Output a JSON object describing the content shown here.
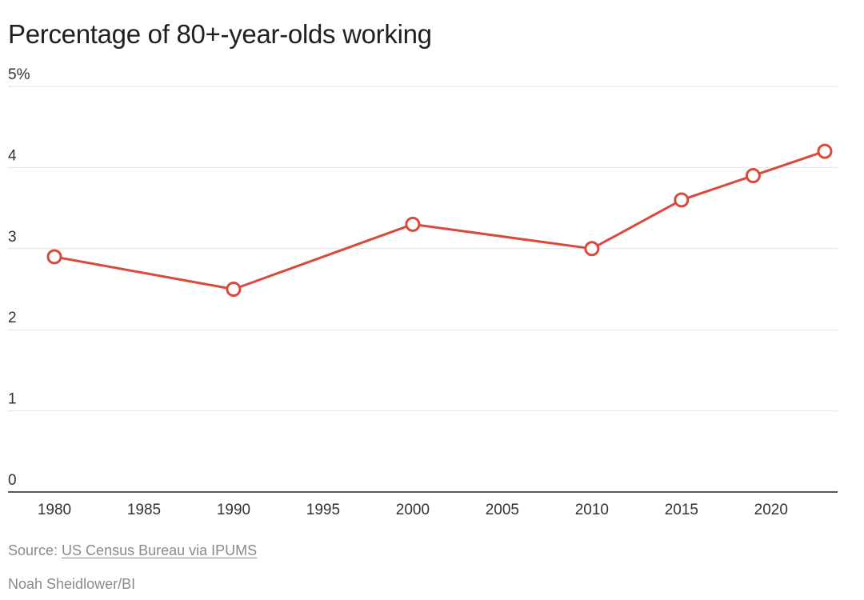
{
  "chart_data": {
    "type": "line",
    "title": "Percentage of 80+-year-olds working",
    "xlabel": "",
    "ylabel": "",
    "x_ticks": [
      1980,
      1985,
      1990,
      1995,
      2000,
      2005,
      2010,
      2015,
      2020
    ],
    "y_ticks": [
      "0",
      "1",
      "2",
      "3",
      "4",
      "5%"
    ],
    "xlim": [
      1979,
      2024.5
    ],
    "ylim": [
      0,
      5
    ],
    "grid": true,
    "series": [
      {
        "color": "#d94a3d",
        "points": [
          {
            "x": 1980,
            "y": 2.9
          },
          {
            "x": 1990,
            "y": 2.5
          },
          {
            "x": 2000,
            "y": 3.3
          },
          {
            "x": 2010,
            "y": 3.0
          },
          {
            "x": 2015,
            "y": 3.6
          },
          {
            "x": 2019,
            "y": 3.9
          },
          {
            "x": 2023,
            "y": 4.2
          }
        ]
      }
    ]
  },
  "footer": {
    "source_label": "Source: ",
    "source_link": "US Census Bureau via IPUMS",
    "credit": "Noah Sheidlower/BI"
  },
  "colors": {
    "line": "#d94a3d",
    "grid": "#e2e2e2",
    "axis": "#222222"
  }
}
